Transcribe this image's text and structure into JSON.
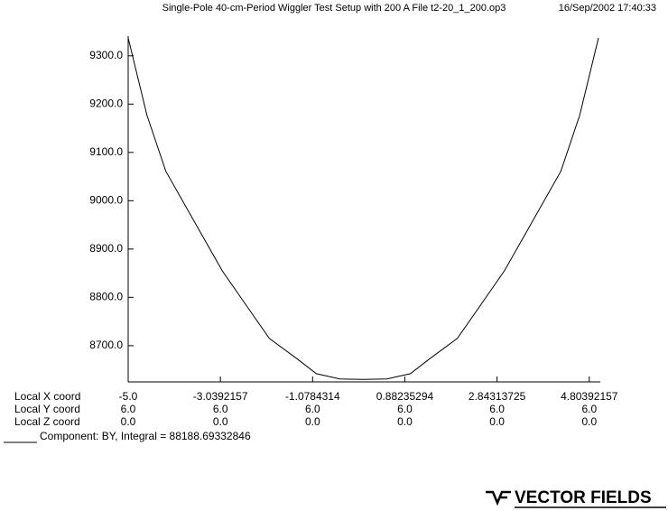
{
  "chart_data": {
    "type": "line",
    "title": "Single-Pole 40-cm-Period Wiggler Test Setup with 200 A  File t2-20_1_200.op3",
    "timestamp": "16/Sep/2002 17:40:33",
    "x": [
      -5,
      -4.6,
      -4.2,
      -3.6,
      -3.0,
      -2.6,
      -2.0,
      -1.4,
      -1.0,
      -0.5,
      0,
      0.5,
      1.0,
      1.4,
      2.0,
      2.6,
      3.0,
      3.6,
      4.2,
      4.6,
      5
    ],
    "series": [
      {
        "name": "Component:  BY, Integral = 88188.69332846",
        "color": "#000000",
        "values": [
          9337,
          9177,
          9061,
          8958,
          8855,
          8799,
          8715,
          8672,
          8642,
          8631,
          8630,
          8631,
          8642,
          8672,
          8715,
          8799,
          8855,
          8958,
          9061,
          9177,
          9337
        ]
      }
    ],
    "xlim": [
      -5,
      5
    ],
    "ylim": [
      8625,
      9337
    ],
    "xticks": [
      {
        "value": -5,
        "label": "-5.0"
      },
      -3.0392157,
      -1.0784314,
      0.88235294,
      2.84313725,
      4.80392157
    ],
    "yticks": [
      {
        "value": 8700,
        "label": "8700.0"
      },
      {
        "value": 8800,
        "label": "8800.0"
      },
      {
        "value": 8900,
        "label": "8900.0"
      },
      {
        "value": 9000,
        "label": "9000.0"
      },
      {
        "value": 9100,
        "label": "9100.0"
      },
      {
        "value": 9200,
        "label": "9200.0"
      },
      {
        "value": 9300,
        "label": "9300.0"
      }
    ],
    "x_axis_label": "Local X coord",
    "coord_rows": [
      {
        "label": "Local Y coord",
        "values": [
          "6.0",
          "6.0",
          "6.0",
          "6.0",
          "6.0",
          "6.0"
        ]
      },
      {
        "label": "Local Z coord",
        "values": [
          "0.0",
          "0.0",
          "0.0",
          "0.0",
          "0.0",
          "0.0"
        ]
      }
    ]
  },
  "logo": "VECTOR FIELDS"
}
